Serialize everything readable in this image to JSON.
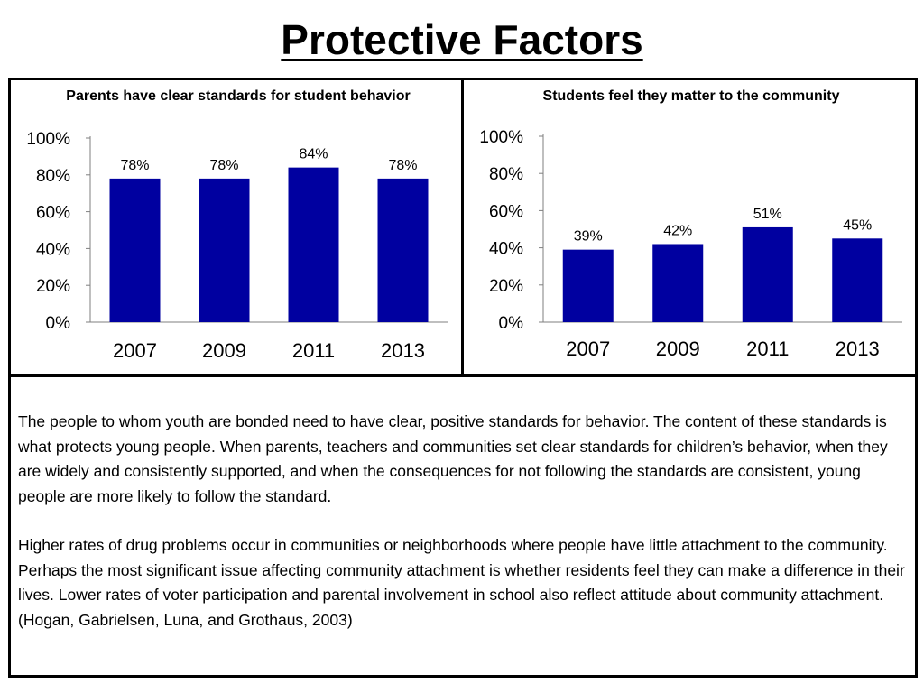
{
  "page": {
    "title": "Protective Factors"
  },
  "colors": {
    "bar": "#0000A0",
    "axis": "#7f7f7f",
    "text": "#000000"
  },
  "chart_data": [
    {
      "type": "bar",
      "title": "Parents have clear standards for student behavior",
      "categories": [
        "2007",
        "2009",
        "2011",
        "2013"
      ],
      "values": [
        78,
        78,
        84,
        78
      ],
      "value_labels": [
        "78%",
        "78%",
        "84%",
        "78%"
      ],
      "yticks": [
        "0%",
        "20%",
        "40%",
        "60%",
        "80%",
        "100%"
      ],
      "ylim": [
        0,
        100
      ],
      "xlabel": "",
      "ylabel": "",
      "grid": false,
      "legend": "none"
    },
    {
      "type": "bar",
      "title": "Students feel they matter to the community",
      "categories": [
        "2007",
        "2009",
        "2011",
        "2013"
      ],
      "values": [
        39,
        42,
        51,
        45
      ],
      "value_labels": [
        "39%",
        "42%",
        "51%",
        "45%"
      ],
      "yticks": [
        "0%",
        "20%",
        "40%",
        "60%",
        "80%",
        "100%"
      ],
      "ylim": [
        0,
        100
      ],
      "xlabel": "",
      "ylabel": "",
      "grid": false,
      "legend": "none"
    }
  ],
  "description": {
    "paragraphs": [
      "The people to whom youth are bonded need to have clear, positive standards for behavior.  The content of these standards is what protects young people.  When parents, teachers and communities set clear standards for children’s behavior, when they are widely and consistently supported, and when the consequences for not following the standards are consistent, young people are more likely to follow the standard.",
      "Higher rates of drug problems occur in communities or neighborhoods where people have little attachment to the community.  Perhaps the most significant issue affecting community attachment is whether residents feel they can make a difference in their lives.  Lower rates of voter participation and parental involvement in school also reflect attitude about community attachment. (Hogan, Gabrielsen, Luna, and Grothaus, 2003)"
    ]
  }
}
